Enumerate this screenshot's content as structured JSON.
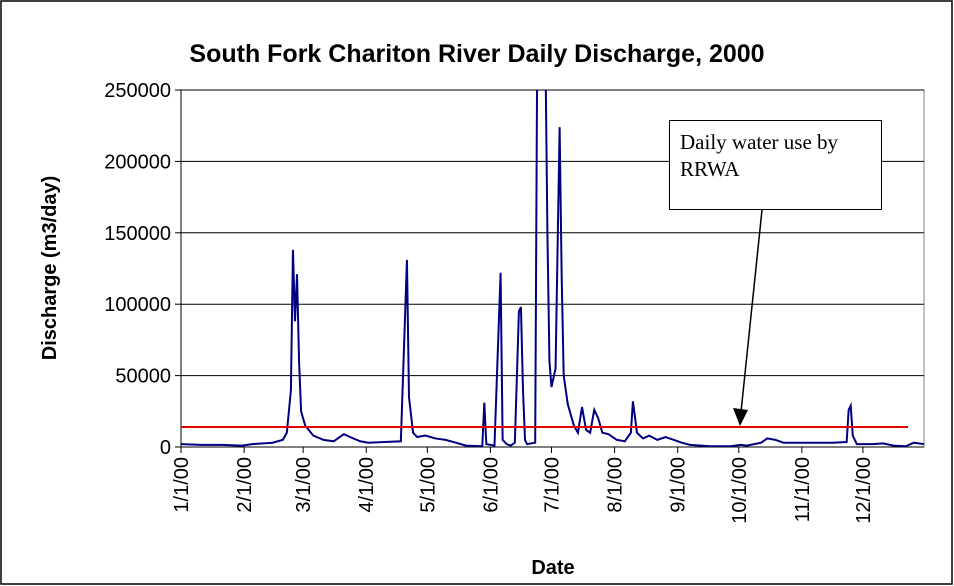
{
  "chart_data": {
    "type": "line",
    "title": "South Fork Chariton River Daily Discharge, 2000",
    "x_label": "Date",
    "y_label": "Discharge (m3/day)",
    "annotation": "Daily water use by RRWA",
    "xlim": [
      0,
      365
    ],
    "xticks": [
      {
        "value": 0,
        "label": "1/1/00"
      },
      {
        "value": 31,
        "label": "2/1/00"
      },
      {
        "value": 60,
        "label": "3/1/00"
      },
      {
        "value": 91,
        "label": "4/1/00"
      },
      {
        "value": 121,
        "label": "5/1/00"
      },
      {
        "value": 152,
        "label": "6/1/00"
      },
      {
        "value": 182,
        "label": "7/1/00"
      },
      {
        "value": 213,
        "label": "8/1/00"
      },
      {
        "value": 244,
        "label": "9/1/00"
      },
      {
        "value": 274,
        "label": "10/1/00"
      },
      {
        "value": 305,
        "label": "11/1/00"
      },
      {
        "value": 335,
        "label": "12/1/00"
      }
    ],
    "ylim": [
      0,
      250000
    ],
    "yticks": [
      0,
      50000,
      100000,
      150000,
      200000,
      250000
    ],
    "grid": true,
    "reference_line": {
      "value": 14000,
      "color": "#e00000"
    },
    "series": [
      {
        "color": "#000080",
        "x": [
          0,
          10,
          20,
          30,
          35,
          45,
          50,
          52,
          54,
          55,
          56,
          57,
          58,
          59,
          61,
          65,
          70,
          75,
          80,
          83,
          88,
          92,
          100,
          108,
          111,
          112,
          114,
          116,
          120,
          125,
          130,
          135,
          140,
          148,
          149,
          150,
          154,
          157,
          158,
          160,
          162,
          164,
          166,
          167,
          168,
          169,
          170,
          174,
          175,
          179,
          180,
          181,
          182,
          184,
          186,
          187,
          188,
          190,
          193,
          195,
          197,
          199,
          201,
          203,
          205,
          207,
          210,
          214,
          218,
          221,
          222,
          224,
          227,
          230,
          234,
          238,
          242,
          246,
          250,
          260,
          270,
          275,
          278,
          285,
          288,
          292,
          296,
          310,
          320,
          327,
          328,
          329,
          330,
          332,
          340,
          345,
          350,
          356,
          360,
          365
        ],
        "values": [
          2000,
          1500,
          1500,
          1000,
          2000,
          3000,
          5000,
          10000,
          40000,
          138000,
          88000,
          121000,
          60000,
          25000,
          15000,
          8000,
          5000,
          4000,
          9000,
          7000,
          4000,
          3000,
          3500,
          4000,
          131000,
          35000,
          10000,
          7000,
          8000,
          6000,
          5000,
          3000,
          1000,
          500,
          31000,
          2000,
          1000,
          122000,
          5000,
          2000,
          1000,
          3000,
          95000,
          98000,
          40000,
          5000,
          2000,
          3000,
          280000,
          280000,
          150000,
          60000,
          42000,
          55000,
          224000,
          120000,
          50000,
          30000,
          15000,
          10000,
          28000,
          12000,
          10000,
          26000,
          20000,
          10000,
          9000,
          5000,
          4000,
          10000,
          32000,
          10000,
          6000,
          8000,
          5000,
          7000,
          5000,
          3000,
          1500,
          500,
          500,
          1500,
          1000,
          3000,
          6000,
          5000,
          3000,
          3000,
          3000,
          3500,
          26000,
          29000,
          8000,
          2000,
          2000,
          2500,
          1000,
          500,
          3000,
          2000
        ]
      }
    ]
  }
}
